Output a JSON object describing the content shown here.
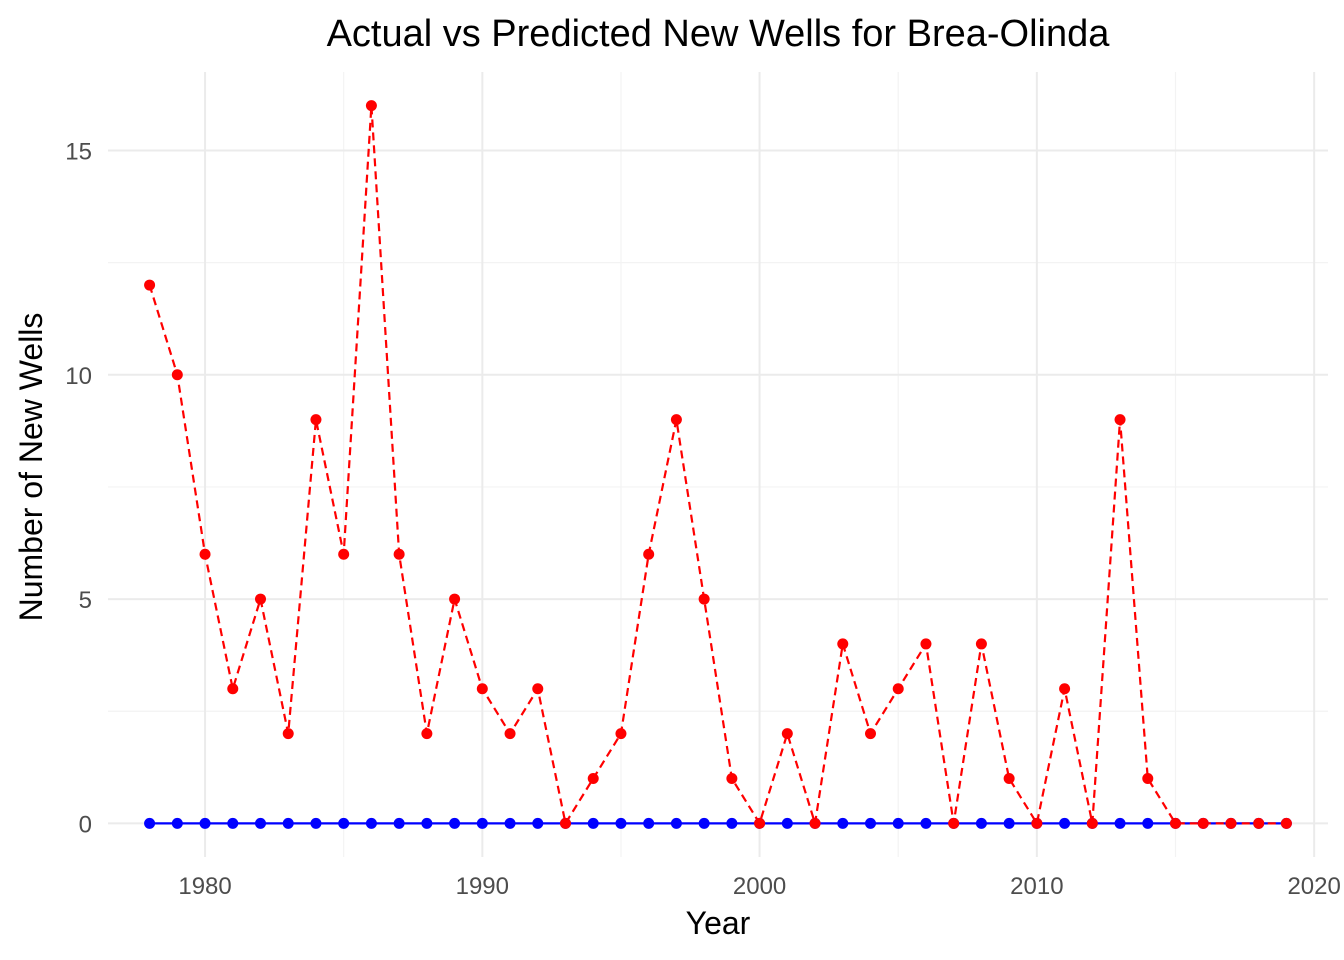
{
  "chart_data": {
    "type": "line",
    "title": "Actual vs Predicted New Wells for Brea-Olinda",
    "xlabel": "Year",
    "ylabel": "Number of New Wells",
    "xlim": [
      1976.5,
      2020.5
    ],
    "ylim": [
      -0.75,
      16.75
    ],
    "x_ticks": [
      1980,
      1990,
      2000,
      2010,
      2020
    ],
    "y_ticks": [
      0,
      5,
      10,
      15
    ],
    "grid": true,
    "legend": "none",
    "x": [
      1978,
      1979,
      1980,
      1981,
      1982,
      1983,
      1984,
      1985,
      1986,
      1987,
      1988,
      1989,
      1990,
      1991,
      1992,
      1993,
      1994,
      1995,
      1996,
      1997,
      1998,
      1999,
      2000,
      2001,
      2002,
      2003,
      2004,
      2005,
      2006,
      2007,
      2008,
      2009,
      2010,
      2011,
      2012,
      2013,
      2014,
      2015,
      2016,
      2017,
      2018,
      2019
    ],
    "series": [
      {
        "color": "#0000ff",
        "line_style": "solid",
        "values": [
          0,
          0,
          0,
          0,
          0,
          0,
          0,
          0,
          0,
          0,
          0,
          0,
          0,
          0,
          0,
          0,
          0,
          0,
          0,
          0,
          0,
          0,
          0,
          0,
          0,
          0,
          0,
          0,
          0,
          0,
          0,
          0,
          0,
          0,
          0,
          0,
          0,
          0,
          0,
          0,
          0,
          0
        ]
      },
      {
        "color": "#ff0000",
        "line_style": "dashed",
        "values": [
          12,
          10,
          6,
          3,
          5,
          2,
          9,
          6,
          16,
          6,
          2,
          5,
          3,
          2,
          3,
          0,
          1,
          2,
          6,
          9,
          5,
          1,
          0,
          2,
          0,
          4,
          2,
          3,
          4,
          0,
          4,
          1,
          0,
          3,
          0,
          9,
          1,
          0,
          0,
          0,
          0,
          0
        ]
      }
    ]
  }
}
